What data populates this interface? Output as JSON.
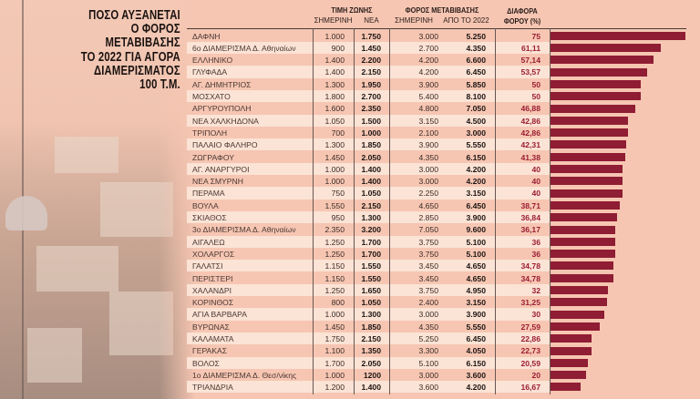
{
  "title_lines": [
    "ΠΟΣΟ ΑΥΞΑΝΕΤΑΙ",
    "Ο ΦΟΡΟΣ",
    "ΜΕΤΑΒΙΒΑΣΗΣ",
    "ΤΟ 2022 ΓΙΑ ΑΓΟΡΑ",
    "ΔΙΑΜΕΡΙΣΜΑΤΟΣ",
    "100 Τ.Μ."
  ],
  "headers": {
    "zone": "ΤΙΜΗ ΖΩΝΗΣ",
    "zone_today": "ΣΗΜΕΡΙΝΗ",
    "zone_new": "ΝΕΑ",
    "tax": "ΦΟΡΟΣ ΜΕΤΑΒΙΒΑΣΗΣ",
    "tax_today": "ΣΗΜΕΡΙΝΗ",
    "tax_2022": "ΑΠΟ ΤΟ 2022",
    "diff1": "ΔΙΑΦΟΡΑ",
    "diff2": "ΦΟΡΟΥ (%)"
  },
  "colors": {
    "bar": "#8f1d33",
    "background": "#f6c6b2",
    "diff_text": "#9b1e33"
  },
  "chart_data": {
    "type": "bar",
    "orientation": "horizontal",
    "title": "ΠΟΣΟ ΑΥΞΑΝΕΤΑΙ Ο ΦΟΡΟΣ ΜΕΤΑΒΙΒΑΣΗΣ ΤΟ 2022 ΓΙΑ ΑΓΟΡΑ ΔΙΑΜΕΡΙΣΜΑΤΟΣ 100 Τ.Μ.",
    "rows": [
      {
        "area": "ΔΑΦΝΗ",
        "zone_today": "1.000",
        "zone_new": "1.750",
        "tax_today": "3.000",
        "tax_2022": "5.250",
        "diff": "75",
        "value": 75
      },
      {
        "area": "6ο ΔΙΑΜΕΡΙΣΜΑ Δ. Αθηναίων",
        "zone_today": "900",
        "zone_new": "1.450",
        "tax_today": "2.700",
        "tax_2022": "4.350",
        "diff": "61,11",
        "value": 61.11
      },
      {
        "area": "ΕΛΛΗΝΙΚΟ",
        "zone_today": "1.400",
        "zone_new": "2.200",
        "tax_today": "4.200",
        "tax_2022": "6.600",
        "diff": "57,14",
        "value": 57.14
      },
      {
        "area": "ΓΛΥΦΑΔΑ",
        "zone_today": "1.400",
        "zone_new": "2.150",
        "tax_today": "4.200",
        "tax_2022": "6.450",
        "diff": "53,57",
        "value": 53.57
      },
      {
        "area": "ΑΓ. ΔΗΜΗΤΡΙΟΣ",
        "zone_today": "1.300",
        "zone_new": "1.950",
        "tax_today": "3.900",
        "tax_2022": "5.850",
        "diff": "50",
        "value": 50
      },
      {
        "area": "ΜΟΣΧΑΤΟ",
        "zone_today": "1.800",
        "zone_new": "2.700",
        "tax_today": "5.400",
        "tax_2022": "8.100",
        "diff": "50",
        "value": 50
      },
      {
        "area": "ΑΡΓΥΡΟΥΠΟΛΗ",
        "zone_today": "1.600",
        "zone_new": "2.350",
        "tax_today": "4.800",
        "tax_2022": "7.050",
        "diff": "46,88",
        "value": 46.88
      },
      {
        "area": "ΝΕΑ ΧΑΛΚΗΔΟΝΑ",
        "zone_today": "1.050",
        "zone_new": "1.500",
        "tax_today": "3.150",
        "tax_2022": "4.500",
        "diff": "42,86",
        "value": 42.86
      },
      {
        "area": "ΤΡΙΠΟΛΗ",
        "zone_today": "700",
        "zone_new": "1.000",
        "tax_today": "2.100",
        "tax_2022": "3.000",
        "diff": "42,86",
        "value": 42.86
      },
      {
        "area": "ΠΑΛΑΙΟ ΦΑΛΗΡΟ",
        "zone_today": "1.300",
        "zone_new": "1.850",
        "tax_today": "3.900",
        "tax_2022": "5.550",
        "diff": "42,31",
        "value": 42.31
      },
      {
        "area": "ΖΩΓΡΑΦΟΥ",
        "zone_today": "1.450",
        "zone_new": "2.050",
        "tax_today": "4.350",
        "tax_2022": "6.150",
        "diff": "41,38",
        "value": 41.38
      },
      {
        "area": "ΑΓ. ΑΝΑΡΓΥΡΟΙ",
        "zone_today": "1.000",
        "zone_new": "1.400",
        "tax_today": "3.000",
        "tax_2022": "4.200",
        "diff": "40",
        "value": 40
      },
      {
        "area": "ΝΕΑ ΣΜΥΡΝΗ",
        "zone_today": "1.000",
        "zone_new": "1.400",
        "tax_today": "3.000",
        "tax_2022": "4.200",
        "diff": "40",
        "value": 40
      },
      {
        "area": "ΠΕΡΑΜΑ",
        "zone_today": "750",
        "zone_new": "1.050",
        "tax_today": "2.250",
        "tax_2022": "3.150",
        "diff": "40",
        "value": 40
      },
      {
        "area": "ΒΟΥΛΑ",
        "zone_today": "1.550",
        "zone_new": "2.150",
        "tax_today": "4.650",
        "tax_2022": "6.450",
        "diff": "38,71",
        "value": 38.71
      },
      {
        "area": "ΣΚΙΑΘΟΣ",
        "zone_today": "950",
        "zone_new": "1.300",
        "tax_today": "2.850",
        "tax_2022": "3.900",
        "diff": "36,84",
        "value": 36.84
      },
      {
        "area": "3ο ΔΙΑΜΕΡΙΣΜΑ Δ. Αθηναίων",
        "zone_today": "2.350",
        "zone_new": "3.200",
        "tax_today": "7.050",
        "tax_2022": "9.600",
        "diff": "36,17",
        "value": 36.17
      },
      {
        "area": "ΑΙΓΑΛΕΩ",
        "zone_today": "1.250",
        "zone_new": "1.700",
        "tax_today": "3.750",
        "tax_2022": "5.100",
        "diff": "36",
        "value": 36
      },
      {
        "area": "ΧΟΛΑΡΓΟΣ",
        "zone_today": "1.250",
        "zone_new": "1.700",
        "tax_today": "3.750",
        "tax_2022": "5.100",
        "diff": "36",
        "value": 36
      },
      {
        "area": "ΓΑΛΑΤΣΙ",
        "zone_today": "1.150",
        "zone_new": "1.550",
        "tax_today": "3.450",
        "tax_2022": "4.650",
        "diff": "34,78",
        "value": 34.78
      },
      {
        "area": "ΠΕΡΙΣΤΕΡΙ",
        "zone_today": "1.150",
        "zone_new": "1.550",
        "tax_today": "3.450",
        "tax_2022": "4.650",
        "diff": "34,78",
        "value": 34.78
      },
      {
        "area": "ΧΑΛΑΝΔΡΙ",
        "zone_today": "1.250",
        "zone_new": "1.650",
        "tax_today": "3.750",
        "tax_2022": "4.950",
        "diff": "32",
        "value": 32
      },
      {
        "area": "ΚΟΡΙΝΘΟΣ",
        "zone_today": "800",
        "zone_new": "1.050",
        "tax_today": "2.400",
        "tax_2022": "3.150",
        "diff": "31,25",
        "value": 31.25
      },
      {
        "area": "ΑΓΙΑ ΒΑΡΒΑΡΑ",
        "zone_today": "1.000",
        "zone_new": "1.300",
        "tax_today": "3.000",
        "tax_2022": "3.900",
        "diff": "30",
        "value": 30
      },
      {
        "area": "ΒΥΡΩΝΑΣ",
        "zone_today": "1.450",
        "zone_new": "1.850",
        "tax_today": "4.350",
        "tax_2022": "5.550",
        "diff": "27,59",
        "value": 27.59
      },
      {
        "area": "ΚΑΛΑΜΑΤΑ",
        "zone_today": "1.750",
        "zone_new": "2.150",
        "tax_today": "5.250",
        "tax_2022": "6.450",
        "diff": "22,86",
        "value": 22.86
      },
      {
        "area": "ΓΕΡΑΚΑΣ",
        "zone_today": "1.100",
        "zone_new": "1.350",
        "tax_today": "3.300",
        "tax_2022": "4.050",
        "diff": "22,73",
        "value": 22.73
      },
      {
        "area": "ΒΟΛΟΣ",
        "zone_today": "1.700",
        "zone_new": "2.050",
        "tax_today": "5.100",
        "tax_2022": "6.150",
        "diff": "20,59",
        "value": 20.59
      },
      {
        "area": "1ο ΔΙΑΜΕΡΙΣΜΑ Δ. Θεσ/νίκης",
        "zone_today": "1.000",
        "zone_new": "1200",
        "tax_today": "3.000",
        "tax_2022": "3.600",
        "diff": "20",
        "value": 20
      },
      {
        "area": "ΤΡΙΑΝΔΡΙΑ",
        "zone_today": "1.200",
        "zone_new": "1.400",
        "tax_today": "3.600",
        "tax_2022": "4.200",
        "diff": "16,67",
        "value": 16.67
      }
    ],
    "xlim": [
      0,
      75
    ]
  }
}
